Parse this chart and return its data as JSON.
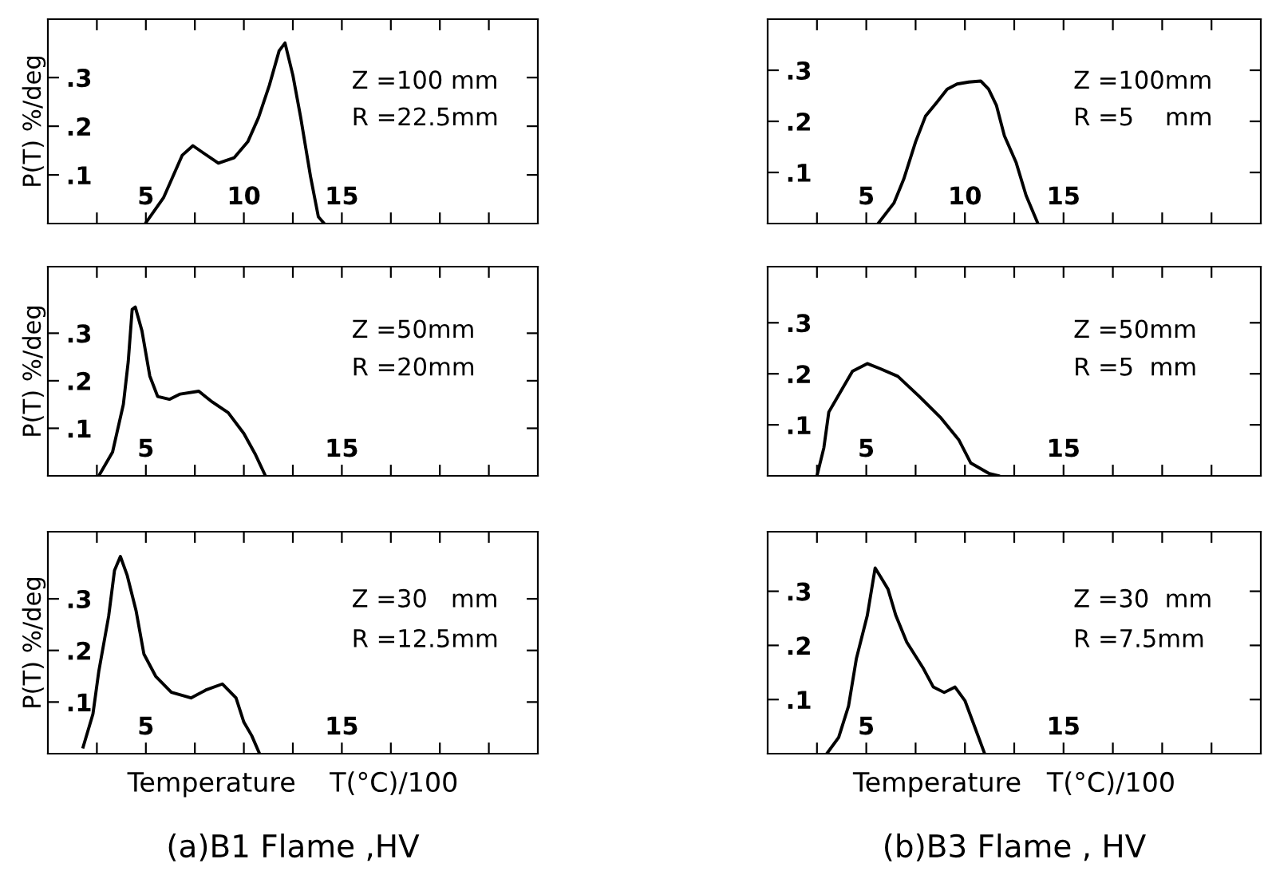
{
  "chart_data": [
    {
      "type": "line",
      "ylabel": "P(T) %/deg",
      "annotations": [
        "Z =100 mm",
        "R =22.5mm"
      ],
      "xlim": [
        0,
        25
      ],
      "ylim": [
        0,
        0.42
      ],
      "xticks": [
        {
          "value": 2.5,
          "label": null
        },
        {
          "value": 5,
          "label": "5"
        },
        {
          "value": 7.5,
          "label": null
        },
        {
          "value": 10,
          "label": "10"
        },
        {
          "value": 12.5,
          "label": null
        },
        {
          "value": 15,
          "label": "15"
        },
        {
          "value": 17.5,
          "label": null
        },
        {
          "value": 20,
          "label": null
        },
        {
          "value": 22.5,
          "label": null
        }
      ],
      "yticks": [
        {
          "value": 0.1,
          "label": ".1"
        },
        {
          "value": 0.2,
          "label": ".2"
        },
        {
          "value": 0.3,
          "label": ".3"
        }
      ],
      "grid": false,
      "marker": "none",
      "line_style": "solid",
      "series": [
        {
          "color": "#000000",
          "x": [
            4.97,
            5.9,
            6.85,
            7.4,
            7.9,
            8.7,
            9.5,
            10.2,
            10.75,
            11.3,
            11.8,
            12.1,
            12.5,
            12.9,
            13.4,
            13.8,
            14.1
          ],
          "values": [
            0,
            0.053,
            0.14,
            0.16,
            0.146,
            0.124,
            0.135,
            0.168,
            0.218,
            0.284,
            0.355,
            0.371,
            0.305,
            0.218,
            0.097,
            0.014,
            0
          ]
        }
      ]
    },
    {
      "type": "line",
      "ylabel": "P(T) %/deg",
      "annotations": [
        "Z =50mm",
        "R =20mm"
      ],
      "xlim": [
        0,
        25
      ],
      "ylim": [
        0,
        0.44
      ],
      "xticks": [
        {
          "value": 2.5,
          "label": null
        },
        {
          "value": 5,
          "label": "5"
        },
        {
          "value": 7.5,
          "label": null
        },
        {
          "value": 10,
          "label": null
        },
        {
          "value": 12.5,
          "label": null
        },
        {
          "value": 15,
          "label": "15"
        },
        {
          "value": 17.5,
          "label": null
        },
        {
          "value": 20,
          "label": null
        },
        {
          "value": 22.5,
          "label": null
        }
      ],
      "yticks": [
        {
          "value": 0.1,
          "label": ".1"
        },
        {
          "value": 0.2,
          "label": ".2"
        },
        {
          "value": 0.3,
          "label": ".3"
        }
      ],
      "grid": false,
      "marker": "none",
      "line_style": "solid",
      "series": [
        {
          "color": "#000000",
          "x": [
            2.6,
            3.3,
            3.85,
            4.1,
            4.3,
            4.46,
            4.8,
            5.2,
            5.6,
            6.2,
            6.75,
            7.7,
            8.4,
            9.2,
            10.0,
            10.6,
            11.1
          ],
          "values": [
            0,
            0.05,
            0.15,
            0.24,
            0.35,
            0.355,
            0.305,
            0.21,
            0.167,
            0.161,
            0.172,
            0.178,
            0.155,
            0.133,
            0.089,
            0.044,
            0
          ]
        }
      ]
    },
    {
      "type": "line",
      "ylabel": "P(T) %/deg",
      "xlabel": "Temperature    T(°C)/100",
      "annotations": [
        "Z =30   mm",
        "R =12.5mm",
        "(a)B1 Flame ,HV"
      ],
      "xlim": [
        0,
        25
      ],
      "ylim": [
        0,
        0.43
      ],
      "xticks": [
        {
          "value": 2.5,
          "label": null
        },
        {
          "value": 5,
          "label": "5"
        },
        {
          "value": 7.5,
          "label": null
        },
        {
          "value": 10,
          "label": null
        },
        {
          "value": 12.5,
          "label": null
        },
        {
          "value": 15,
          "label": "15"
        },
        {
          "value": 17.5,
          "label": null
        },
        {
          "value": 20,
          "label": null
        },
        {
          "value": 22.5,
          "label": null
        }
      ],
      "yticks": [
        {
          "value": 0.1,
          "label": ".1"
        },
        {
          "value": 0.2,
          "label": ".2"
        },
        {
          "value": 0.3,
          "label": ".3"
        }
      ],
      "grid": false,
      "marker": "none",
      "line_style": "solid",
      "series": [
        {
          "color": "#000000",
          "x": [
            1.8,
            2.3,
            2.6,
            3.1,
            3.4,
            3.7,
            4.05,
            4.5,
            4.9,
            5.5,
            6.3,
            7.3,
            8.1,
            8.9,
            9.6,
            10.0,
            10.4,
            10.8
          ],
          "values": [
            0.013,
            0.077,
            0.16,
            0.266,
            0.355,
            0.382,
            0.345,
            0.277,
            0.193,
            0.15,
            0.119,
            0.108,
            0.124,
            0.135,
            0.108,
            0.061,
            0.035,
            0
          ]
        }
      ]
    },
    {
      "type": "line",
      "annotations": [
        "Z =100mm",
        "R =5    mm"
      ],
      "xlim": [
        0,
        25
      ],
      "ylim": [
        0,
        0.4
      ],
      "xticks": [
        {
          "value": 2.5,
          "label": null
        },
        {
          "value": 5,
          "label": "5"
        },
        {
          "value": 7.5,
          "label": null
        },
        {
          "value": 10,
          "label": "10"
        },
        {
          "value": 12.5,
          "label": null
        },
        {
          "value": 15,
          "label": "15"
        },
        {
          "value": 17.5,
          "label": null
        },
        {
          "value": 20,
          "label": null
        },
        {
          "value": 22.5,
          "label": null
        }
      ],
      "yticks": [
        {
          "value": 0.1,
          "label": ".1"
        },
        {
          "value": 0.2,
          "label": ".2"
        },
        {
          "value": 0.3,
          "label": ".3"
        }
      ],
      "grid": false,
      "marker": "none",
      "line_style": "solid",
      "series": [
        {
          "color": "#000000",
          "x": [
            5.6,
            6.4,
            6.9,
            7.5,
            8.0,
            8.55,
            9.1,
            9.6,
            10.2,
            10.8,
            11.2,
            11.6,
            12.0,
            12.6,
            13.1,
            13.7
          ],
          "values": [
            0,
            0.04,
            0.087,
            0.16,
            0.21,
            0.236,
            0.263,
            0.273,
            0.277,
            0.279,
            0.263,
            0.231,
            0.172,
            0.119,
            0.055,
            0
          ]
        }
      ]
    },
    {
      "type": "line",
      "annotations": [
        "Z =50mm",
        "R =5  mm"
      ],
      "xlim": [
        0,
        25
      ],
      "ylim": [
        0,
        0.41
      ],
      "xticks": [
        {
          "value": 2.5,
          "label": null
        },
        {
          "value": 5,
          "label": "5"
        },
        {
          "value": 7.5,
          "label": null
        },
        {
          "value": 10,
          "label": null
        },
        {
          "value": 12.5,
          "label": null
        },
        {
          "value": 15,
          "label": "15"
        },
        {
          "value": 17.5,
          "label": null
        },
        {
          "value": 20,
          "label": null
        },
        {
          "value": 22.5,
          "label": null
        }
      ],
      "yticks": [
        {
          "value": 0.1,
          "label": ".1"
        },
        {
          "value": 0.2,
          "label": ".2"
        },
        {
          "value": 0.3,
          "label": ".3"
        }
      ],
      "grid": false,
      "marker": "none",
      "line_style": "solid",
      "series": [
        {
          "color": "#000000",
          "x": [
            2.5,
            2.85,
            3.1,
            3.7,
            4.3,
            5.05,
            5.7,
            6.6,
            7.7,
            8.75,
            9.7,
            10.3,
            11.2,
            11.7
          ],
          "values": [
            0,
            0.055,
            0.125,
            0.165,
            0.205,
            0.22,
            0.21,
            0.195,
            0.155,
            0.115,
            0.07,
            0.025,
            0.005,
            0
          ]
        }
      ]
    },
    {
      "type": "line",
      "xlabel": "Temperature   T(°C)/100",
      "annotations": [
        "Z =30  mm",
        "R =7.5mm",
        "(b)B3 Flame , HV"
      ],
      "xlim": [
        0,
        25
      ],
      "ylim": [
        0,
        0.41
      ],
      "xticks": [
        {
          "value": 2.5,
          "label": null
        },
        {
          "value": 5,
          "label": "5"
        },
        {
          "value": 7.5,
          "label": null
        },
        {
          "value": 10,
          "label": null
        },
        {
          "value": 12.5,
          "label": null
        },
        {
          "value": 15,
          "label": "15"
        },
        {
          "value": 17.5,
          "label": null
        },
        {
          "value": 20,
          "label": null
        },
        {
          "value": 22.5,
          "label": null
        }
      ],
      "yticks": [
        {
          "value": 0.1,
          "label": ".1"
        },
        {
          "value": 0.2,
          "label": ".2"
        },
        {
          "value": 0.3,
          "label": ".3"
        }
      ],
      "grid": false,
      "marker": "none",
      "line_style": "solid",
      "series": [
        {
          "color": "#000000",
          "x": [
            3.0,
            3.6,
            4.1,
            4.5,
            5.05,
            5.45,
            5.7,
            6.1,
            6.5,
            7.05,
            7.9,
            8.4,
            8.95,
            9.5,
            10.0,
            10.4,
            11.0
          ],
          "values": [
            0,
            0.03,
            0.088,
            0.176,
            0.255,
            0.343,
            0.328,
            0.304,
            0.255,
            0.206,
            0.157,
            0.123,
            0.113,
            0.123,
            0.098,
            0.059,
            0
          ]
        }
      ]
    }
  ]
}
